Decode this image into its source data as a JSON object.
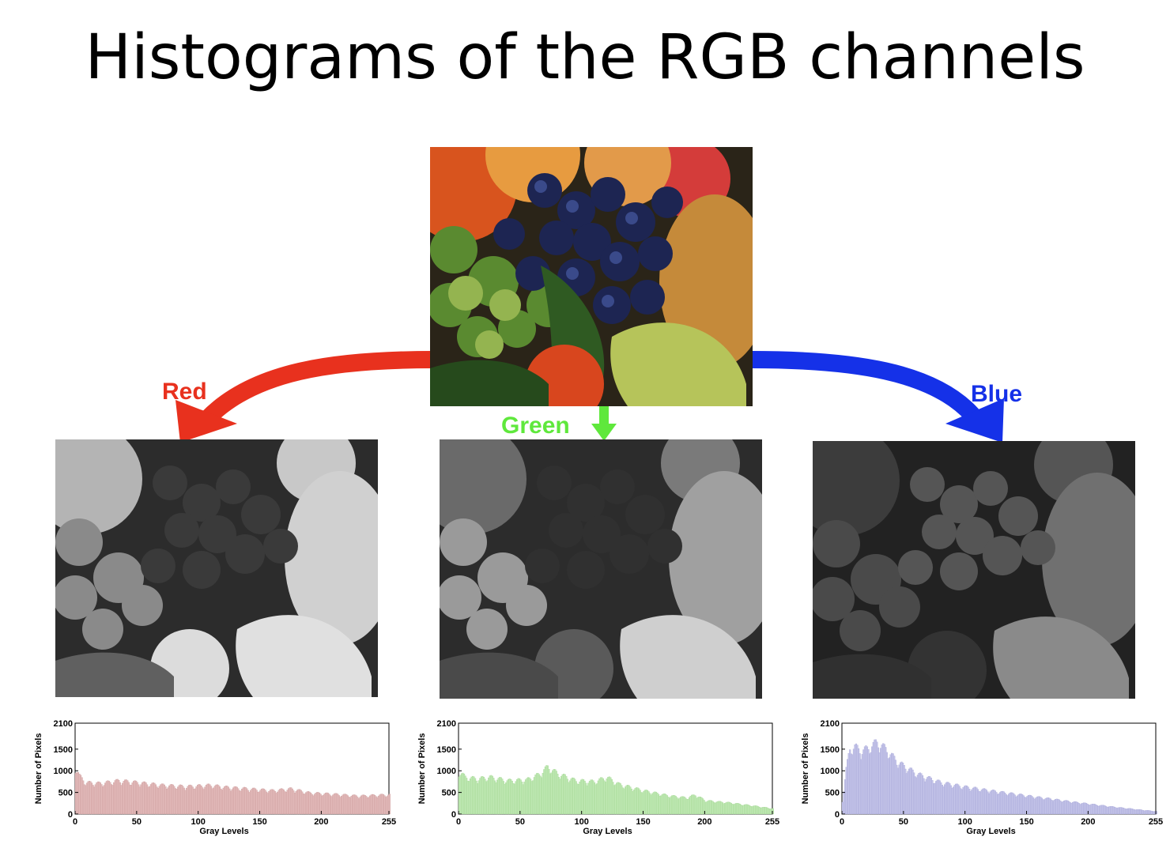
{
  "title": "Histograms of the RGB channels",
  "channels": {
    "red_label": "Red",
    "green_label": "Green",
    "blue_label": "Blue"
  },
  "colors": {
    "red": "#e8311e",
    "green": "#5fe83c",
    "blue": "#1531e8",
    "red_fill": "#e2b9b9",
    "green_fill": "#bfe8b3",
    "blue_fill": "#c3c3e8"
  },
  "chart_data": [
    {
      "type": "bar",
      "channel": "Red",
      "xlabel": "Gray Levels",
      "ylabel": "Number of Pixels",
      "xlim": [
        0,
        255
      ],
      "ylim": [
        0,
        2100
      ],
      "xticks": [
        0,
        50,
        100,
        150,
        200,
        255
      ],
      "yticks": [
        0,
        500,
        1000,
        1500,
        2100
      ],
      "profile": [
        [
          0,
          1050
        ],
        [
          3,
          850
        ],
        [
          8,
          700
        ],
        [
          20,
          680
        ],
        [
          35,
          740
        ],
        [
          50,
          700
        ],
        [
          70,
          640
        ],
        [
          90,
          610
        ],
        [
          110,
          640
        ],
        [
          120,
          600
        ],
        [
          140,
          560
        ],
        [
          160,
          520
        ],
        [
          175,
          560
        ],
        [
          190,
          470
        ],
        [
          210,
          440
        ],
        [
          230,
          400
        ],
        [
          245,
          420
        ],
        [
          255,
          430
        ]
      ]
    },
    {
      "type": "bar",
      "channel": "Green",
      "xlabel": "Gray Levels",
      "ylabel": "Number of Pixels",
      "xlim": [
        0,
        255
      ],
      "ylim": [
        0,
        2100
      ],
      "xticks": [
        0,
        50,
        100,
        150,
        200,
        255
      ],
      "yticks": [
        0,
        500,
        1000,
        1500,
        2100
      ],
      "profile": [
        [
          0,
          950
        ],
        [
          5,
          820
        ],
        [
          15,
          780
        ],
        [
          25,
          820
        ],
        [
          40,
          740
        ],
        [
          55,
          760
        ],
        [
          65,
          880
        ],
        [
          72,
          1050
        ],
        [
          80,
          900
        ],
        [
          95,
          740
        ],
        [
          110,
          720
        ],
        [
          120,
          820
        ],
        [
          130,
          660
        ],
        [
          150,
          520
        ],
        [
          170,
          410
        ],
        [
          185,
          360
        ],
        [
          192,
          430
        ],
        [
          200,
          300
        ],
        [
          220,
          250
        ],
        [
          240,
          180
        ],
        [
          255,
          120
        ]
      ]
    },
    {
      "type": "bar",
      "channel": "Blue",
      "xlabel": "Gray Levels",
      "ylabel": "Number of Pixels",
      "xlim": [
        0,
        255
      ],
      "ylim": [
        0,
        2100
      ],
      "xticks": [
        0,
        50,
        100,
        150,
        200,
        255
      ],
      "yticks": [
        0,
        500,
        1000,
        1500,
        2100
      ],
      "profile": [
        [
          0,
          300
        ],
        [
          3,
          1000
        ],
        [
          6,
          1450
        ],
        [
          10,
          1500
        ],
        [
          15,
          1400
        ],
        [
          20,
          1450
        ],
        [
          28,
          1600
        ],
        [
          35,
          1450
        ],
        [
          45,
          1150
        ],
        [
          60,
          900
        ],
        [
          80,
          700
        ],
        [
          100,
          600
        ],
        [
          130,
          480
        ],
        [
          160,
          370
        ],
        [
          190,
          260
        ],
        [
          220,
          160
        ],
        [
          240,
          100
        ],
        [
          255,
          60
        ]
      ]
    }
  ]
}
